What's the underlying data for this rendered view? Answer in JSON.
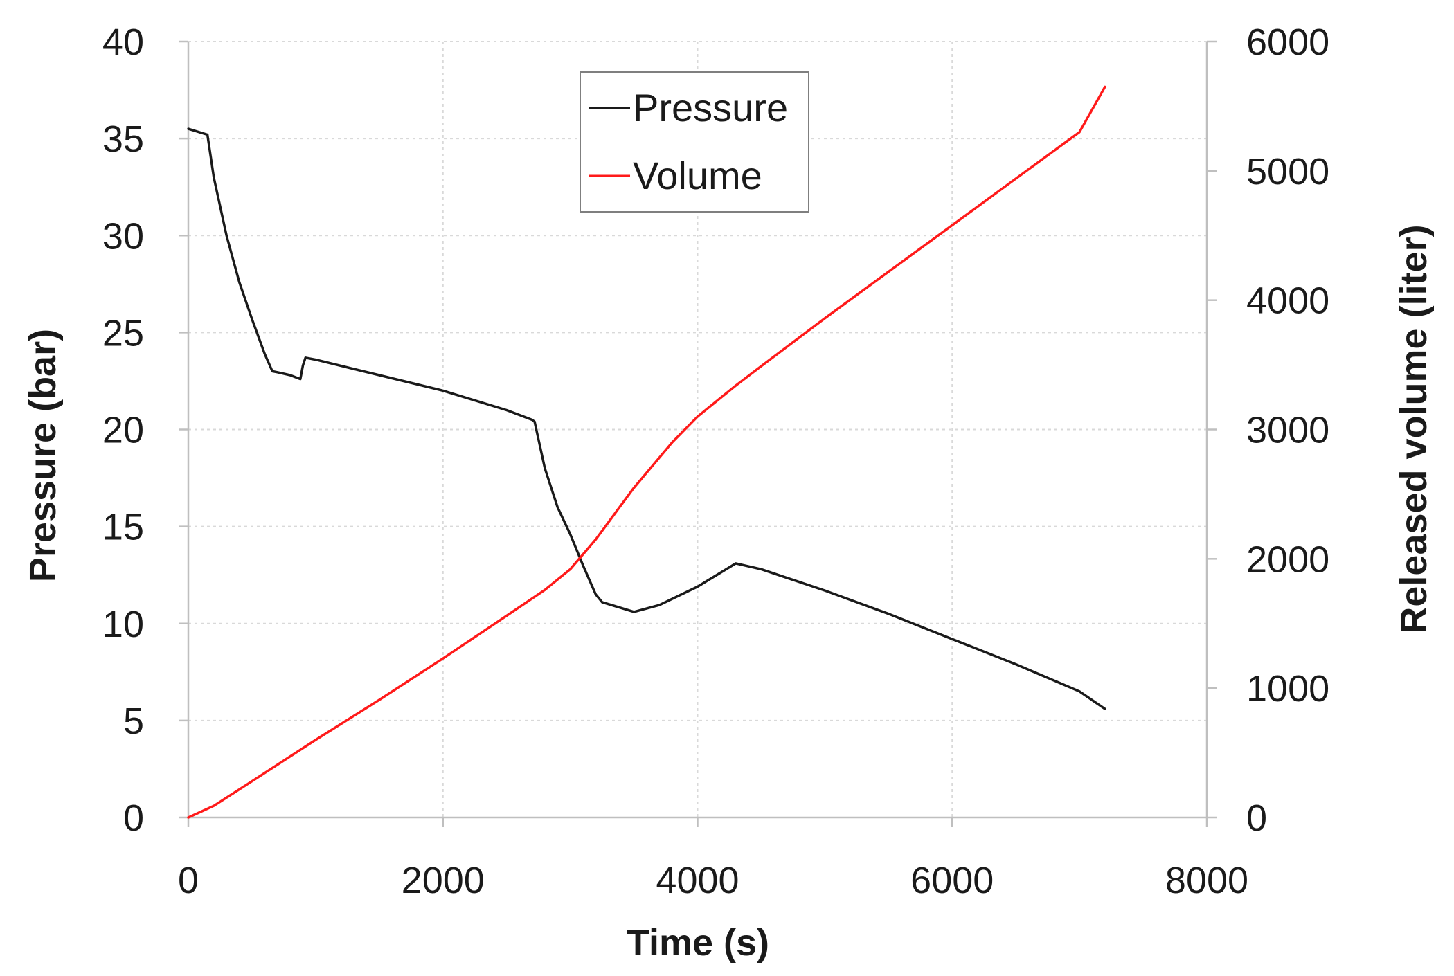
{
  "chart_data": {
    "type": "line",
    "title": "",
    "xlabel": "Time (s)",
    "ylabel": "Pressure (bar)",
    "y2label": "Released volume (liter)",
    "xlim": [
      0,
      8000
    ],
    "ylim": [
      0,
      40
    ],
    "y2lim": [
      0,
      6000
    ],
    "x_ticks": [
      "0",
      "2000",
      "4000",
      "6000",
      "8000"
    ],
    "y_ticks": [
      "0",
      "5",
      "10",
      "15",
      "20",
      "25",
      "30",
      "35",
      "40"
    ],
    "y2_ticks": [
      "0",
      "1000",
      "2000",
      "3000",
      "4000",
      "5000",
      "6000"
    ],
    "grid": true,
    "legend_position": "top-center",
    "series": [
      {
        "name": "Pressure",
        "axis": "left",
        "color": "#1a1a1a",
        "x": [
          0,
          150,
          200,
          300,
          400,
          500,
          600,
          660,
          700,
          800,
          880,
          900,
          920,
          1000,
          1500,
          2000,
          2500,
          2700,
          2720,
          2800,
          2900,
          3000,
          3100,
          3200,
          3250,
          3400,
          3500,
          3700,
          4000,
          4200,
          4300,
          4500,
          5000,
          5500,
          6000,
          6500,
          7000,
          7200
        ],
        "values": [
          35.5,
          35.2,
          33.0,
          30.0,
          27.6,
          25.7,
          23.9,
          23.0,
          22.95,
          22.8,
          22.6,
          23.3,
          23.7,
          23.6,
          22.8,
          22.0,
          21.0,
          20.5,
          20.4,
          18.0,
          16.0,
          14.6,
          13.0,
          11.5,
          11.1,
          10.8,
          10.6,
          10.95,
          11.9,
          12.7,
          13.1,
          12.8,
          11.7,
          10.5,
          9.2,
          7.9,
          6.5,
          5.6
        ]
      },
      {
        "name": "Volume",
        "axis": "right",
        "color": "#ff1a1a",
        "x": [
          0,
          200,
          500,
          1000,
          1500,
          2000,
          2500,
          2800,
          3000,
          3200,
          3500,
          3800,
          4000,
          4300,
          4500,
          5000,
          5500,
          6000,
          6500,
          7000,
          7200
        ],
        "values": [
          0,
          90,
          280,
          600,
          910,
          1230,
          1560,
          1760,
          1920,
          2150,
          2550,
          2900,
          3100,
          3340,
          3490,
          3860,
          4220,
          4580,
          4940,
          5300,
          5650
        ]
      }
    ]
  }
}
